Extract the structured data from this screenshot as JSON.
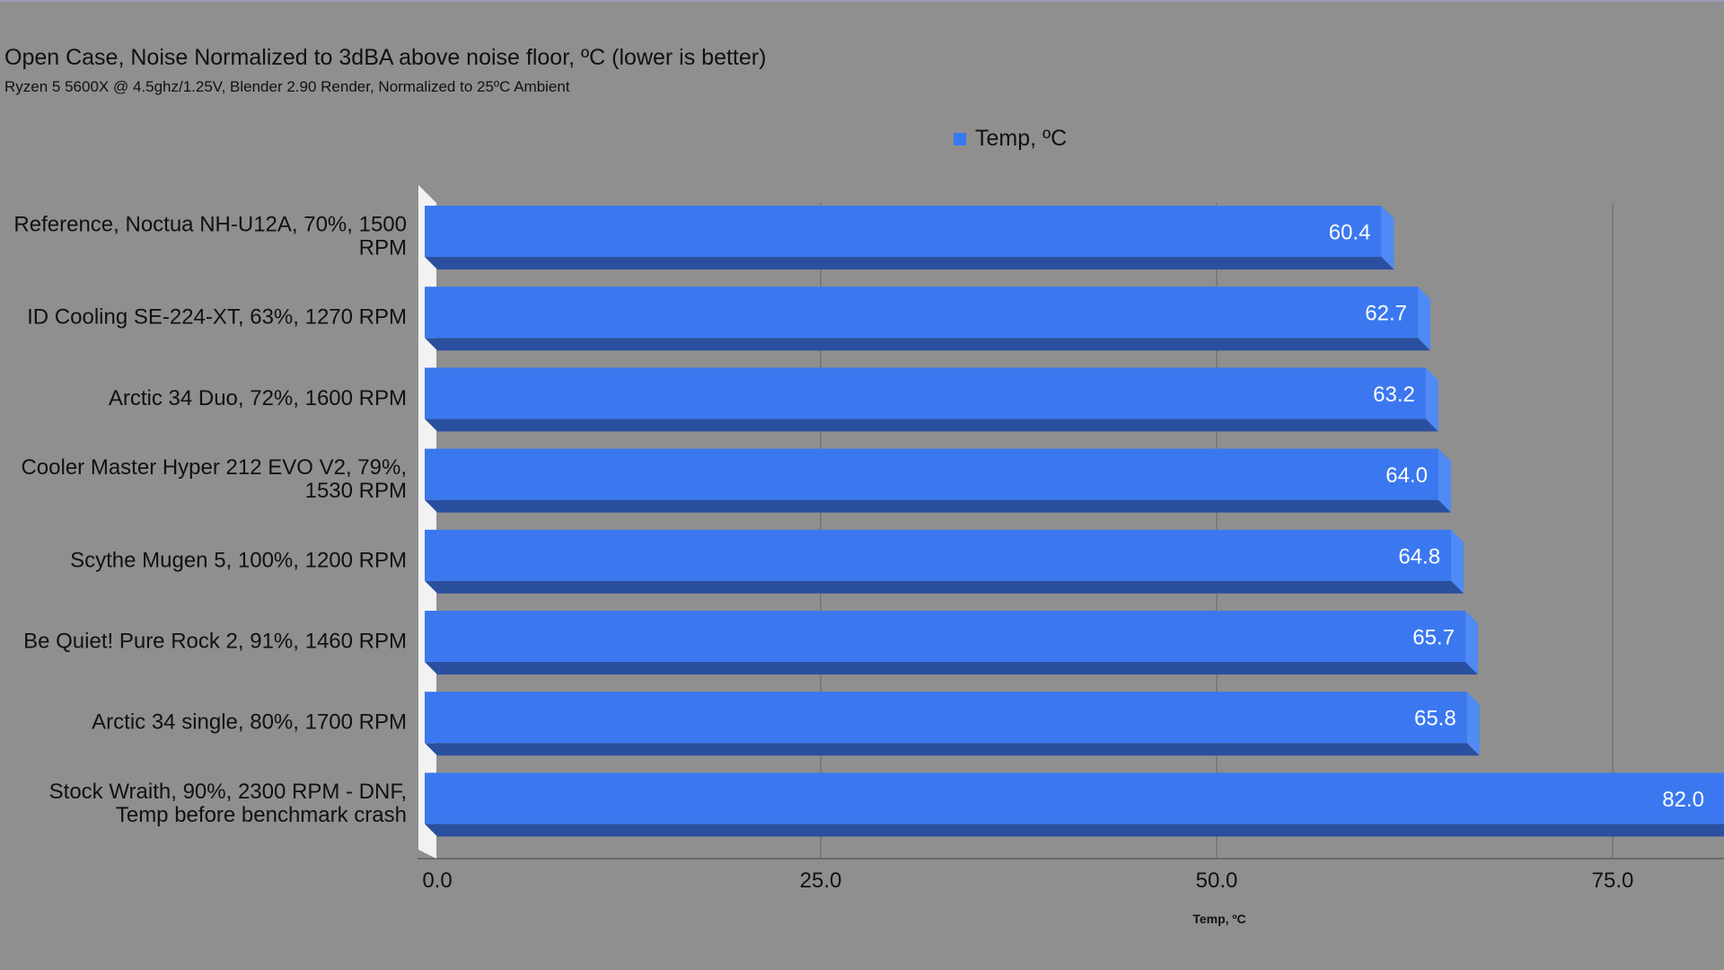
{
  "chart_data": {
    "type": "bar",
    "orientation": "horizontal",
    "style": "3d",
    "title": "Open Case, Noise Normalized to 3dBA above noise floor, ºC (lower is better)",
    "subtitle": "Ryzen 5 5600X @ 4.5ghz/1.25V, Blender 2.90 Render, Normalized to 25ºC Ambient",
    "legend": {
      "position": "top",
      "entries": [
        "Temp, ºC"
      ]
    },
    "xlabel": "Temp, ºC",
    "ylabel": "",
    "xlim": [
      0,
      82
    ],
    "x_ticks": [
      "0.0",
      "25.0",
      "50.0",
      "75.0"
    ],
    "x_tick_values": [
      0,
      25,
      50,
      75
    ],
    "grid": true,
    "categories": [
      [
        "Reference, Noctua NH-U12A, 70%, 1500",
        "RPM"
      ],
      [
        "ID Cooling SE-224-XT, 63%, 1270 RPM"
      ],
      [
        "Arctic 34 Duo, 72%, 1600 RPM"
      ],
      [
        "Cooler Master Hyper 212 EVO V2, 79%,",
        "1530 RPM"
      ],
      [
        "Scythe Mugen 5, 100%, 1200 RPM"
      ],
      [
        "Be Quiet! Pure Rock 2, 91%, 1460 RPM"
      ],
      [
        "Arctic 34 single, 80%, 1700 RPM"
      ],
      [
        "Stock Wraith, 90%, 2300 RPM - DNF,",
        "Temp before benchmark crash"
      ]
    ],
    "series": [
      {
        "name": "Temp, ºC",
        "values": [
          60.4,
          62.7,
          63.2,
          64.0,
          64.8,
          65.7,
          65.8,
          82.0
        ],
        "value_labels": [
          "60.4",
          "62.7",
          "63.2",
          "64.0",
          "64.8",
          "65.7",
          "65.8",
          "82.0"
        ]
      }
    ],
    "colors": {
      "background": "#8f8f8f",
      "bar_front": "#3b78f0",
      "bar_side": "#4f8af5",
      "bar_bottom": "#2a4f9e",
      "grid": "#6e6e6e",
      "axis_wall": "#f2f2f2"
    }
  }
}
